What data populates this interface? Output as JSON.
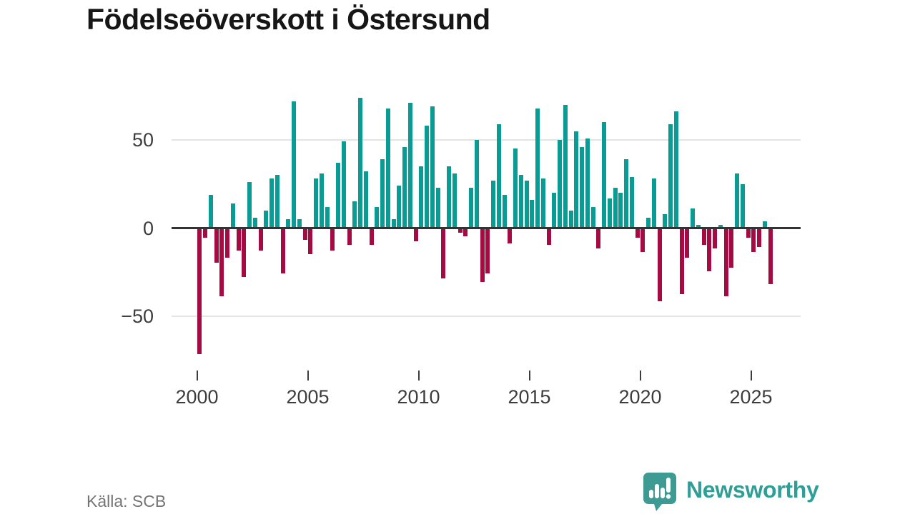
{
  "title": "Födelseöverskott i Östersund",
  "source": {
    "text": "Källa: SCB"
  },
  "branding": {
    "name": "Newsworthy",
    "icon_color": "#3e9b93",
    "text_color": "#2f9e96"
  },
  "chart_data": {
    "type": "bar",
    "title": "Födelseöverskott i Östersund",
    "frequency": "quarterly",
    "xlabel": "",
    "ylabel": "",
    "grid": "horizontal",
    "legend": "none",
    "ylim": [
      -75,
      78
    ],
    "positive_color": "#089c94",
    "negative_color": "#a50b42",
    "x_tick_labels": [
      "2000",
      "2005",
      "2010",
      "2015",
      "2020",
      "2025"
    ],
    "y_ticks": [
      {
        "label": "50",
        "value": 50
      },
      {
        "label": "0",
        "value": 0
      },
      {
        "label": "−50",
        "value": -50
      }
    ],
    "series": [
      {
        "name": "Födelseöverskott",
        "by_year": [
          {
            "year": 2000,
            "values": [
              -71,
              -5,
              19,
              -19
            ]
          },
          {
            "year": 2001,
            "values": [
              -38,
              -16,
              14,
              -12
            ]
          },
          {
            "year": 2002,
            "values": [
              -27,
              26,
              6,
              -12
            ]
          },
          {
            "year": 2003,
            "values": [
              10,
              28,
              30,
              -25
            ]
          },
          {
            "year": 2004,
            "values": [
              5,
              72,
              5,
              -6
            ]
          },
          {
            "year": 2005,
            "values": [
              -14,
              28,
              31,
              12
            ]
          },
          {
            "year": 2006,
            "values": [
              -12,
              37,
              49,
              -9
            ]
          },
          {
            "year": 2007,
            "values": [
              15,
              74,
              32,
              -9
            ]
          },
          {
            "year": 2008,
            "values": [
              12,
              39,
              68,
              5
            ]
          },
          {
            "year": 2009,
            "values": [
              24,
              46,
              71,
              -7
            ]
          },
          {
            "year": 2010,
            "values": [
              35,
              58,
              69,
              23
            ]
          },
          {
            "year": 2011,
            "values": [
              -28,
              35,
              31,
              -2
            ]
          },
          {
            "year": 2012,
            "values": [
              -4,
              23,
              50,
              -30
            ]
          },
          {
            "year": 2013,
            "values": [
              -25,
              27,
              59,
              19
            ]
          },
          {
            "year": 2014,
            "values": [
              -8,
              45,
              30,
              27
            ]
          },
          {
            "year": 2015,
            "values": [
              16,
              68,
              28,
              -9
            ]
          },
          {
            "year": 2016,
            "values": [
              20,
              50,
              70,
              10
            ]
          },
          {
            "year": 2017,
            "values": [
              55,
              46,
              51,
              12
            ]
          },
          {
            "year": 2018,
            "values": [
              -11,
              60,
              17,
              23
            ]
          },
          {
            "year": 2019,
            "values": [
              20,
              39,
              29,
              -5
            ]
          },
          {
            "year": 2020,
            "values": [
              -13,
              6,
              28,
              -41
            ]
          },
          {
            "year": 2021,
            "values": [
              8,
              59,
              66,
              -37
            ]
          },
          {
            "year": 2022,
            "values": [
              -16,
              11,
              2,
              -9
            ]
          },
          {
            "year": 2023,
            "values": [
              -24,
              -11,
              2,
              -38
            ]
          },
          {
            "year": 2024,
            "values": [
              -22,
              31,
              25,
              -5
            ]
          },
          {
            "year": 2025,
            "values": [
              -13,
              -10,
              4,
              -31
            ]
          }
        ]
      }
    ]
  }
}
